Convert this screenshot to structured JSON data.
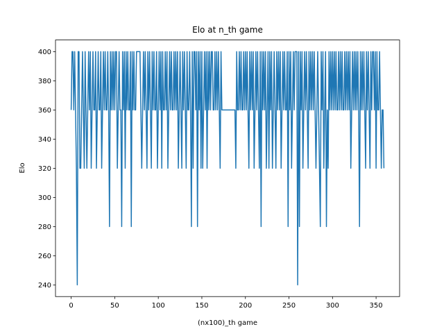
{
  "chart_data": {
    "type": "line",
    "title": "Elo at n_th game",
    "xlabel": "(nx100)_th game",
    "ylabel": "Elo",
    "color": "#1f77b4",
    "x": [
      0,
      1,
      2,
      3,
      4,
      5,
      6,
      7,
      8,
      9,
      10,
      11,
      12,
      13,
      14,
      15,
      16,
      17,
      18,
      19,
      20,
      21,
      22,
      23,
      24,
      25,
      26,
      27,
      28,
      29,
      30,
      31,
      32,
      33,
      34,
      35,
      36,
      37,
      38,
      39,
      40,
      41,
      42,
      43,
      44,
      45,
      46,
      47,
      48,
      49,
      50,
      51,
      52,
      53,
      54,
      55,
      56,
      57,
      58,
      59,
      60,
      61,
      62,
      63,
      64,
      65,
      66,
      67,
      68,
      69,
      70,
      71,
      72,
      73,
      74,
      75,
      76,
      77,
      78,
      79,
      80,
      81,
      82,
      83,
      84,
      85,
      86,
      87,
      88,
      89,
      90,
      91,
      92,
      93,
      94,
      95,
      96,
      97,
      98,
      99,
      100,
      101,
      102,
      103,
      104,
      105,
      106,
      107,
      108,
      109,
      110,
      111,
      112,
      113,
      114,
      115,
      116,
      117,
      118,
      119,
      120,
      121,
      122,
      123,
      124,
      125,
      126,
      127,
      128,
      129,
      130,
      131,
      132,
      133,
      134,
      135,
      136,
      137,
      138,
      139,
      140,
      141,
      142,
      143,
      144,
      145,
      146,
      147,
      148,
      149,
      150,
      151,
      152,
      153,
      154,
      155,
      156,
      157,
      158,
      159,
      160,
      161,
      162,
      163,
      164,
      165,
      166,
      167,
      168,
      169,
      170,
      171,
      172,
      173,
      174,
      175,
      176,
      177,
      178,
      179,
      180,
      181,
      182,
      183,
      184,
      185,
      186,
      187,
      188,
      189,
      190,
      191,
      192,
      193,
      194,
      195,
      196,
      197,
      198,
      199,
      200,
      201,
      202,
      203,
      204,
      205,
      206,
      207,
      208,
      209,
      210,
      211,
      212,
      213,
      214,
      215,
      216,
      217,
      218,
      219,
      220,
      221,
      222,
      223,
      224,
      225,
      226,
      227,
      228,
      229,
      230,
      231,
      232,
      233,
      234,
      235,
      236,
      237,
      238,
      239,
      240,
      241,
      242,
      243,
      244,
      245,
      246,
      247,
      248,
      249,
      250,
      251,
      252,
      253,
      254,
      255,
      256,
      257,
      258,
      259,
      260,
      261,
      262,
      263,
      264,
      265,
      266,
      267,
      268,
      269,
      270,
      271,
      272,
      273,
      274,
      275,
      276,
      277,
      278,
      279,
      280,
      281,
      282,
      283,
      284,
      285,
      286,
      287,
      288,
      289,
      290,
      291,
      292,
      293,
      294,
      295,
      296,
      297,
      298,
      299,
      300,
      301,
      302,
      303,
      304,
      305,
      306,
      307,
      308,
      309,
      310,
      311,
      312,
      313,
      314,
      315,
      316,
      317,
      318,
      319,
      320,
      321,
      322,
      323,
      324,
      325,
      326,
      327,
      328,
      329,
      330,
      331,
      332,
      333,
      334,
      335,
      336,
      337,
      338,
      339,
      340,
      341,
      342,
      343,
      344,
      345,
      346,
      347,
      348,
      349,
      350,
      351,
      352,
      353,
      354,
      355,
      356,
      357,
      358,
      359
    ],
    "values": [
      360,
      400,
      400,
      360,
      400,
      360,
      320,
      240,
      400,
      400,
      320,
      320,
      360,
      400,
      360,
      320,
      400,
      360,
      320,
      360,
      400,
      360,
      400,
      320,
      360,
      400,
      360,
      360,
      400,
      320,
      360,
      400,
      360,
      360,
      400,
      320,
      360,
      400,
      360,
      400,
      360,
      360,
      400,
      360,
      280,
      400,
      360,
      400,
      360,
      400,
      360,
      400,
      400,
      320,
      360,
      400,
      360,
      360,
      280,
      400,
      360,
      400,
      320,
      400,
      360,
      400,
      360,
      360,
      400,
      280,
      400,
      360,
      400,
      360,
      360,
      400,
      400,
      400,
      400,
      400,
      360,
      320,
      360,
      400,
      360,
      400,
      360,
      320,
      400,
      360,
      400,
      360,
      320,
      400,
      360,
      400,
      360,
      360,
      400,
      320,
      360,
      400,
      360,
      400,
      320,
      400,
      360,
      360,
      400,
      360,
      400,
      320,
      360,
      400,
      360,
      400,
      360,
      360,
      400,
      360,
      400,
      360,
      400,
      320,
      360,
      400,
      360,
      320,
      400,
      360,
      400,
      360,
      320,
      400,
      360,
      360,
      400,
      360,
      280,
      400,
      320,
      400,
      400,
      360,
      400,
      280,
      400,
      360,
      400,
      320,
      400,
      320,
      360,
      400,
      360,
      400,
      320,
      400,
      360,
      400,
      360,
      400,
      400,
      360,
      360,
      400,
      360,
      400,
      360,
      400,
      360,
      320,
      400,
      360,
      360,
      360,
      360,
      360,
      360,
      360,
      360,
      360,
      360,
      360,
      360,
      360,
      360,
      360,
      360,
      320,
      400,
      360,
      360,
      400,
      360,
      400,
      360,
      360,
      400,
      360,
      400,
      360,
      400,
      360,
      320,
      400,
      360,
      400,
      360,
      400,
      320,
      360,
      400,
      360,
      400,
      360,
      320,
      400,
      280,
      400,
      360,
      400,
      360,
      400,
      320,
      360,
      400,
      320,
      400,
      360,
      400,
      320,
      360,
      400,
      360,
      320,
      400,
      360,
      400,
      360,
      400,
      320,
      360,
      400,
      360,
      400,
      360,
      360,
      400,
      280,
      400,
      360,
      400,
      320,
      360,
      400,
      360,
      400,
      400,
      400,
      240,
      400,
      280,
      400,
      360,
      400,
      320,
      360,
      400,
      360,
      400,
      360,
      320,
      400,
      360,
      400,
      360,
      400,
      360,
      400,
      360,
      320,
      360,
      400,
      360,
      320,
      280,
      400,
      360,
      400,
      320,
      360,
      400,
      280,
      360,
      320,
      400,
      360,
      400,
      360,
      400,
      360,
      400,
      360,
      400,
      360,
      360,
      400,
      360,
      400,
      360,
      400,
      360,
      360,
      400,
      360,
      400,
      360,
      400,
      360,
      400,
      320,
      360,
      400,
      360,
      400,
      360,
      400,
      360,
      400,
      360,
      280,
      400,
      360,
      400,
      360,
      400,
      360,
      320,
      400,
      360,
      400,
      360,
      320,
      400,
      360,
      400,
      400,
      360,
      400,
      320,
      400,
      360,
      360,
      400,
      360,
      320,
      360,
      360,
      320
    ],
    "xlim": [
      -18,
      377
    ],
    "ylim": [
      232,
      408
    ],
    "xticks": [
      0,
      50,
      100,
      150,
      200,
      250,
      300,
      350
    ],
    "yticks": [
      240,
      260,
      280,
      300,
      320,
      340,
      360,
      380,
      400
    ]
  }
}
